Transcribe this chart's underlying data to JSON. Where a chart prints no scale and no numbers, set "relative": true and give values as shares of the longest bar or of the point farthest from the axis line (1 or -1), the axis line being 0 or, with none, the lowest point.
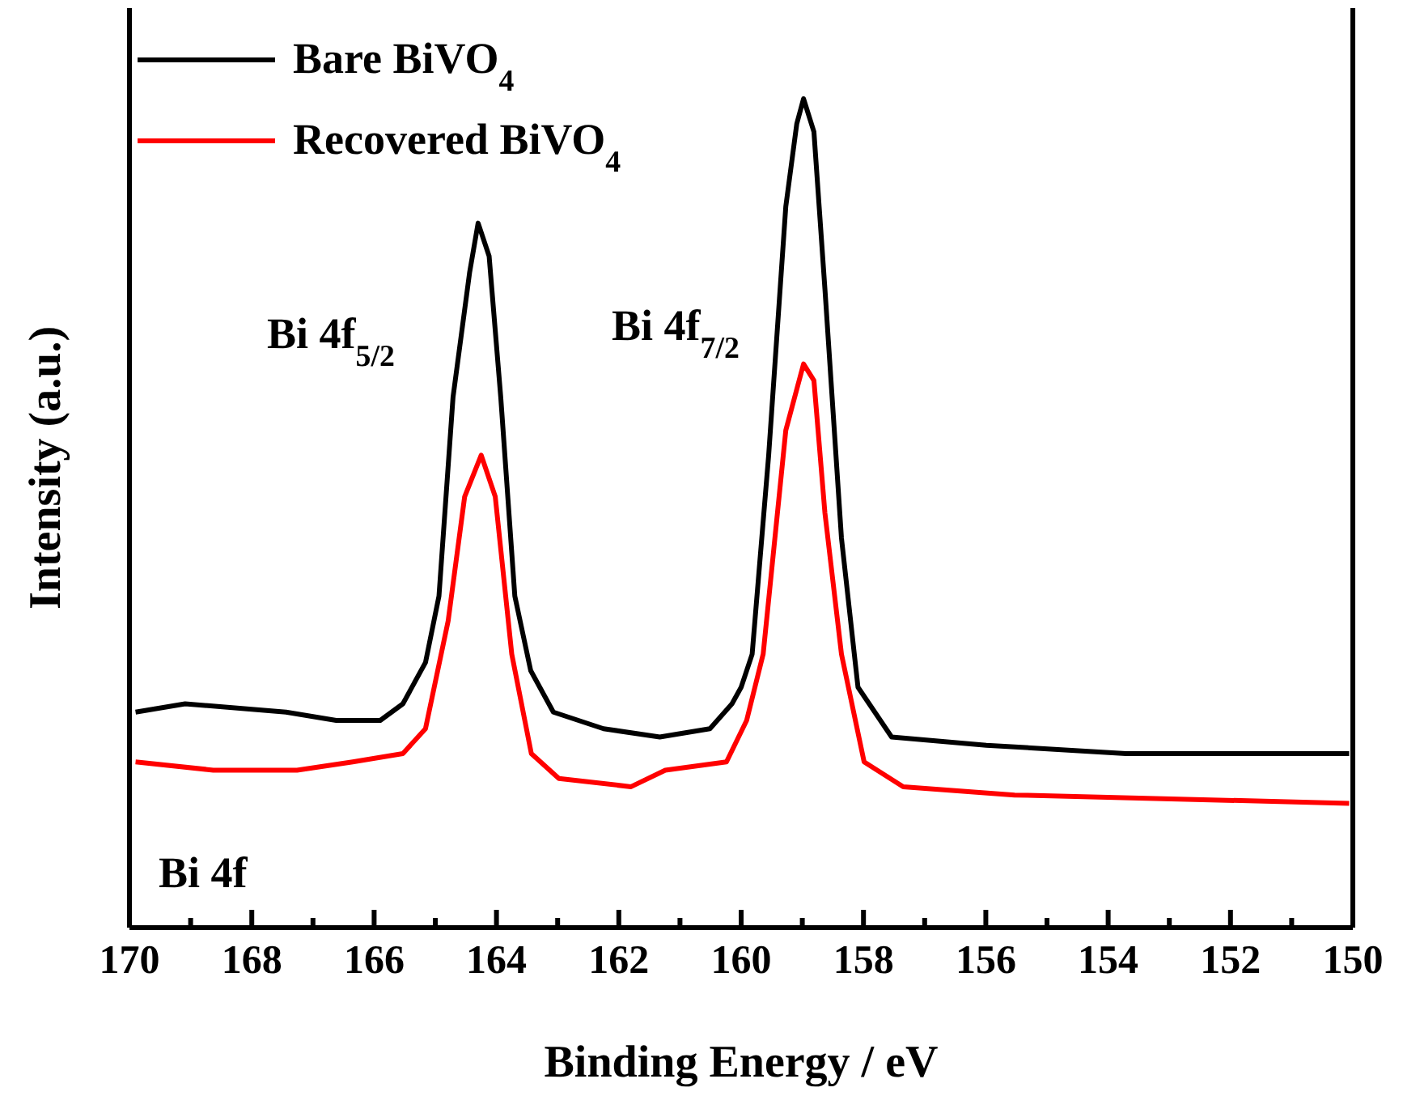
{
  "chart_data": {
    "type": "line",
    "relative": true,
    "xlabel": "Binding Energy / eV",
    "ylabel": "Intensity (a.u.)",
    "xlim": [
      170,
      150
    ],
    "xticks": [
      170,
      {
        "value": 169,
        "label": null
      },
      168,
      {
        "value": 167,
        "label": null
      },
      166,
      {
        "value": 165,
        "label": null
      },
      164,
      {
        "value": 163,
        "label": null
      },
      162,
      {
        "value": 161,
        "label": null
      },
      160,
      {
        "value": 159,
        "label": null
      },
      158,
      {
        "value": 157,
        "label": null
      },
      156,
      {
        "value": 155,
        "label": null
      },
      154,
      {
        "value": 153,
        "label": null
      },
      152,
      {
        "value": 151,
        "label": null
      },
      150
    ],
    "legend": "top left",
    "annotations": [
      "Bi 4f$_{5/2}$",
      "Bi 4f$_{7/2}$",
      "Bi 4f"
    ],
    "series": [
      {
        "name": "Bare BiVO$_{4}$",
        "color": "#000000",
        "x": [
          169.9,
          169.09,
          167.44,
          166.62,
          165.9,
          165.53,
          165.16,
          164.94,
          164.71,
          164.44,
          164.3,
          164.12,
          163.93,
          163.7,
          163.44,
          163.07,
          162.25,
          161.33,
          160.51,
          160.15,
          160.0,
          159.82,
          159.55,
          159.27,
          159.09,
          158.98,
          158.81,
          158.63,
          158.36,
          158.09,
          157.54,
          155.99,
          153.71,
          150.06
        ],
        "values": [
          0.26,
          0.27,
          0.26,
          0.25,
          0.25,
          0.27,
          0.32,
          0.4,
          0.64,
          0.79,
          0.85,
          0.81,
          0.64,
          0.4,
          0.31,
          0.26,
          0.24,
          0.23,
          0.24,
          0.27,
          0.29,
          0.33,
          0.57,
          0.87,
          0.97,
          1,
          0.96,
          0.77,
          0.47,
          0.29,
          0.23,
          0.22,
          0.21,
          0.21
        ]
      },
      {
        "name": "Recovered BiVO$_{4}$",
        "color": "#ff0000",
        "x": [
          169.9,
          168.63,
          167.26,
          166.35,
          165.53,
          165.16,
          164.79,
          164.52,
          164.25,
          164.02,
          163.75,
          163.43,
          162.98,
          161.8,
          161.24,
          160.24,
          159.91,
          159.64,
          159.27,
          158.98,
          158.81,
          158.63,
          158.36,
          157.99,
          157.35,
          155.53,
          150.06
        ],
        "values": [
          0.2,
          0.19,
          0.19,
          0.2,
          0.21,
          0.24,
          0.37,
          0.52,
          0.57,
          0.52,
          0.33,
          0.21,
          0.18,
          0.17,
          0.19,
          0.2,
          0.25,
          0.33,
          0.6,
          0.68,
          0.66,
          0.5,
          0.33,
          0.2,
          0.17,
          0.16,
          0.15
        ]
      }
    ]
  }
}
